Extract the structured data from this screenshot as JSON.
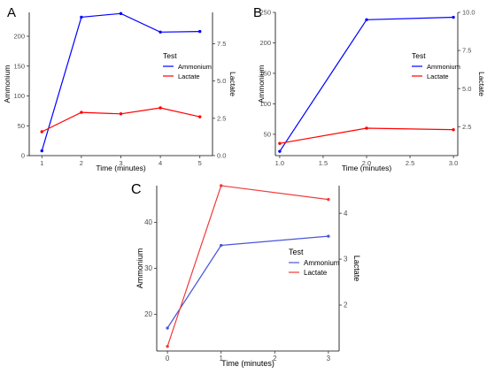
{
  "chart_data": [
    {
      "panel_label": "A",
      "type": "line",
      "xlabel": "Time (minutes)",
      "ylabel": "Ammonium",
      "y2label": "Lactate",
      "x": [
        1,
        2,
        3,
        4,
        5
      ],
      "xticks": [
        "1",
        "2",
        "3",
        "4",
        "5"
      ],
      "ylim": [
        0,
        240
      ],
      "yticks": [
        "0",
        "50",
        "100",
        "150",
        "200"
      ],
      "y2lim": [
        0,
        9.6
      ],
      "y2ticks": [
        "0.0",
        "2.5",
        "5.0",
        "7.5"
      ],
      "legend": {
        "title": "Test",
        "position": "right"
      },
      "series": [
        {
          "name": "Ammonium",
          "color": "#0000ff",
          "axis": "left",
          "values": [
            8,
            232,
            238,
            207,
            208
          ]
        },
        {
          "name": "Lactate",
          "color": "#ff0000",
          "axis": "right",
          "values": [
            1.6,
            2.9,
            2.8,
            3.2,
            2.6
          ]
        }
      ]
    },
    {
      "panel_label": "B",
      "type": "line",
      "xlabel": "Time (minutes)",
      "ylabel": "Ammonium",
      "y2label": "Lactate",
      "x": [
        1,
        2,
        3
      ],
      "xlim": [
        0.95,
        3.05
      ],
      "xticks": [
        "1.0",
        "1.5",
        "2.0",
        "2.5",
        "3.0"
      ],
      "ylim": [
        15,
        250
      ],
      "yticks": [
        "50",
        "100",
        "150",
        "200",
        "250"
      ],
      "y2lim": [
        0.6,
        10
      ],
      "y2ticks": [
        "2.5",
        "5.0",
        "7.5",
        "10.0"
      ],
      "legend": {
        "title": "Test",
        "position": "right"
      },
      "series": [
        {
          "name": "Ammonium",
          "color": "#0000ff",
          "axis": "left",
          "values": [
            22,
            238,
            242
          ]
        },
        {
          "name": "Lactate",
          "color": "#ff0000",
          "axis": "right",
          "values": [
            1.4,
            2.4,
            2.3
          ]
        }
      ]
    },
    {
      "panel_label": "C",
      "type": "line",
      "xlabel": "Time (minutes)",
      "ylabel": "Ammonium",
      "y2label": "Lactate",
      "x": [
        0,
        1,
        3
      ],
      "xlim": [
        -0.2,
        3.2
      ],
      "xticks": [
        "0",
        "1",
        "2",
        "3"
      ],
      "ylim": [
        12,
        48
      ],
      "yticks": [
        "20",
        "30",
        "40"
      ],
      "y2lim": [
        1,
        4.6
      ],
      "y2ticks": [
        "2",
        "3",
        "4"
      ],
      "legend": {
        "title": "Test",
        "position": "right"
      },
      "series": [
        {
          "name": "Ammonium",
          "color": "#4a55d8",
          "axis": "left",
          "values": [
            17,
            35,
            37
          ]
        },
        {
          "name": "Lactate",
          "color": "#f03a3a",
          "axis": "right",
          "values": [
            1.1,
            4.6,
            4.3
          ]
        }
      ]
    }
  ]
}
